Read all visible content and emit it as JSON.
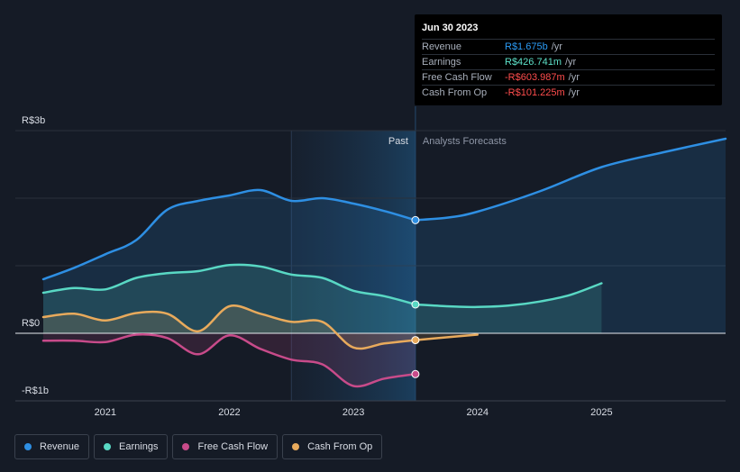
{
  "tooltip": {
    "date": "Jun 30 2023",
    "rows": [
      {
        "label": "Revenue",
        "value": "R$1.675b",
        "unit": "/yr",
        "color": "#2b9af3"
      },
      {
        "label": "Earnings",
        "value": "R$426.741m",
        "unit": "/yr",
        "color": "#5de0c8"
      },
      {
        "label": "Free Cash Flow",
        "value": "-R$603.987m",
        "unit": "/yr",
        "color": "#ff4d4d"
      },
      {
        "label": "Cash From Op",
        "value": "-R$101.225m",
        "unit": "/yr",
        "color": "#ff4d4d"
      }
    ]
  },
  "legend": [
    {
      "label": "Revenue",
      "color": "#2e8fe3"
    },
    {
      "label": "Earnings",
      "color": "#59d8c4"
    },
    {
      "label": "Free Cash Flow",
      "color": "#c84b8a"
    },
    {
      "label": "Cash From Op",
      "color": "#e8aa5c"
    }
  ],
  "chart_data": {
    "type": "line",
    "title": "",
    "y_unit": "R$b",
    "ylim": [
      -1.0,
      3.0
    ],
    "y_ticks": [
      {
        "value": 3,
        "label": "R$3b"
      },
      {
        "value": 0,
        "label": "R$0"
      },
      {
        "value": -1,
        "label": "-R$1b"
      }
    ],
    "x_range": [
      2020.5,
      2026.0
    ],
    "x_ticks": [
      {
        "value": 2021,
        "label": "2021"
      },
      {
        "value": 2022,
        "label": "2022"
      },
      {
        "value": 2023,
        "label": "2023"
      },
      {
        "value": 2024,
        "label": "2024"
      },
      {
        "value": 2025,
        "label": "2025"
      }
    ],
    "past_start": 2022.5,
    "divider": 2023.5,
    "past_label": "Past",
    "forecast_label": "Analysts Forecasts",
    "series": [
      {
        "name": "Revenue",
        "color": "#2e8fe3",
        "past": [
          [
            2020.5,
            0.8
          ],
          [
            2020.75,
            0.97
          ],
          [
            2021.0,
            1.17
          ],
          [
            2021.25,
            1.38
          ],
          [
            2021.5,
            1.83
          ],
          [
            2021.75,
            1.96
          ],
          [
            2022.0,
            2.04
          ],
          [
            2022.25,
            2.12
          ],
          [
            2022.5,
            1.96
          ],
          [
            2022.75,
            2.0
          ],
          [
            2023.0,
            1.92
          ],
          [
            2023.25,
            1.81
          ],
          [
            2023.5,
            1.675
          ]
        ],
        "forecast": [
          [
            2023.5,
            1.675
          ],
          [
            2023.75,
            1.71
          ],
          [
            2024.0,
            1.8
          ],
          [
            2024.5,
            2.1
          ],
          [
            2025.0,
            2.46
          ],
          [
            2025.5,
            2.68
          ],
          [
            2026.0,
            2.88
          ]
        ]
      },
      {
        "name": "Earnings",
        "color": "#59d8c4",
        "past": [
          [
            2020.5,
            0.6
          ],
          [
            2020.75,
            0.67
          ],
          [
            2021.0,
            0.65
          ],
          [
            2021.25,
            0.82
          ],
          [
            2021.5,
            0.89
          ],
          [
            2021.75,
            0.92
          ],
          [
            2022.0,
            1.01
          ],
          [
            2022.25,
            0.99
          ],
          [
            2022.5,
            0.87
          ],
          [
            2022.75,
            0.82
          ],
          [
            2023.0,
            0.63
          ],
          [
            2023.25,
            0.55
          ],
          [
            2023.5,
            0.427
          ]
        ],
        "forecast": [
          [
            2023.5,
            0.427
          ],
          [
            2023.75,
            0.4
          ],
          [
            2024.0,
            0.39
          ],
          [
            2024.25,
            0.41
          ],
          [
            2024.5,
            0.47
          ],
          [
            2024.75,
            0.57
          ],
          [
            2025.0,
            0.74
          ]
        ]
      },
      {
        "name": "Free Cash Flow",
        "color": "#c84b8a",
        "past": [
          [
            2020.5,
            -0.11
          ],
          [
            2020.75,
            -0.11
          ],
          [
            2021.0,
            -0.13
          ],
          [
            2021.25,
            -0.02
          ],
          [
            2021.5,
            -0.07
          ],
          [
            2021.75,
            -0.31
          ],
          [
            2022.0,
            -0.03
          ],
          [
            2022.25,
            -0.23
          ],
          [
            2022.5,
            -0.39
          ],
          [
            2022.75,
            -0.46
          ],
          [
            2023.0,
            -0.78
          ],
          [
            2023.25,
            -0.67
          ],
          [
            2023.5,
            -0.604
          ]
        ],
        "forecast": []
      },
      {
        "name": "Cash From Op",
        "color": "#e8aa5c",
        "past": [
          [
            2020.5,
            0.24
          ],
          [
            2020.75,
            0.29
          ],
          [
            2021.0,
            0.19
          ],
          [
            2021.25,
            0.3
          ],
          [
            2021.5,
            0.29
          ],
          [
            2021.75,
            0.03
          ],
          [
            2022.0,
            0.4
          ],
          [
            2022.25,
            0.29
          ],
          [
            2022.5,
            0.17
          ],
          [
            2022.75,
            0.17
          ],
          [
            2023.0,
            -0.21
          ],
          [
            2023.25,
            -0.15
          ],
          [
            2023.5,
            -0.101
          ]
        ],
        "forecast": [
          [
            2023.5,
            -0.101
          ],
          [
            2023.75,
            -0.06
          ],
          [
            2024.0,
            -0.02
          ]
        ]
      }
    ]
  }
}
